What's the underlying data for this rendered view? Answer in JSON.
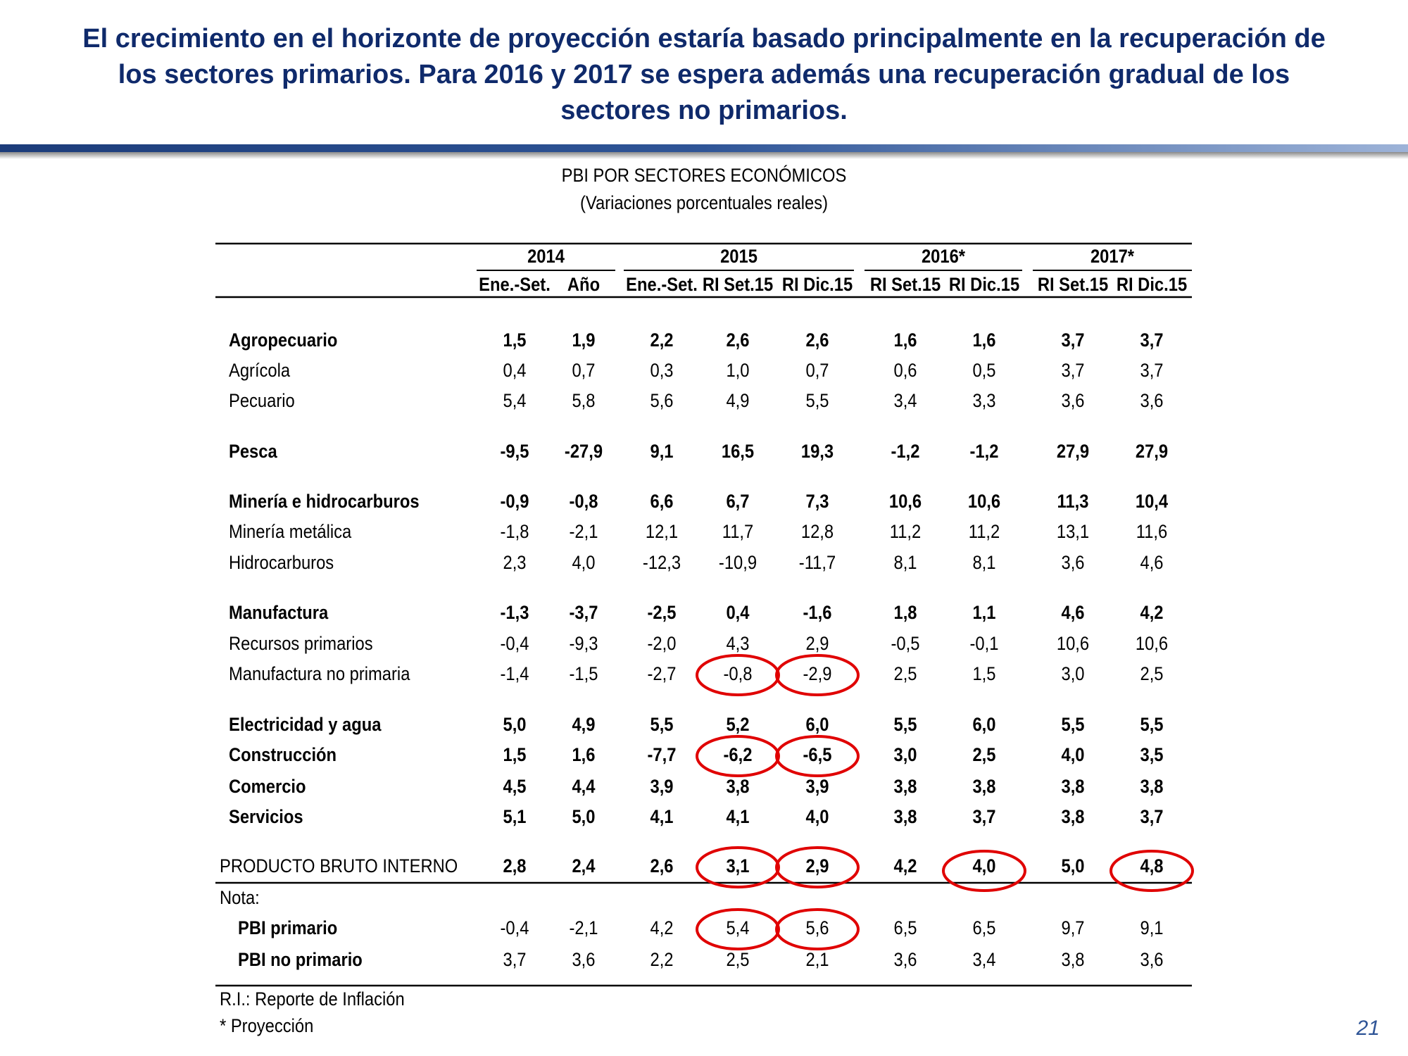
{
  "header": {
    "title": [
      "El crecimiento en el horizonte de proyección estaría basado principalmente en la recuperación de",
      "los sectores primarios. Para 2016 y 2017 se espera además una recuperación gradual de los",
      "sectores no primarios."
    ]
  },
  "table": {
    "title": "PBI POR SECTORES ECONÓMICOS",
    "subtitle": "(Variaciones porcentuales reales)",
    "years": [
      "2014",
      "2015",
      "2016*",
      "2017*"
    ],
    "columns": [
      "Ene.-Set.",
      "Año",
      "Ene.-Set.",
      "RI Set.15",
      "RI Dic.15",
      "RI Set.15",
      "RI Dic.15",
      "RI Set.15",
      "RI Dic.15"
    ],
    "rows": [
      {
        "label": "Agropecuario",
        "values": [
          "1,5",
          "1,9",
          "2,2",
          "2,6",
          "2,6",
          "1,6",
          "1,6",
          "3,7",
          "3,7"
        ]
      },
      {
        "label": "Agrícola",
        "values": [
          "0,4",
          "0,7",
          "0,3",
          "1,0",
          "0,7",
          "0,6",
          "0,5",
          "3,7",
          "3,7"
        ]
      },
      {
        "label": "Pecuario",
        "values": [
          "5,4",
          "5,8",
          "5,6",
          "4,9",
          "5,5",
          "3,4",
          "3,3",
          "3,6",
          "3,6"
        ]
      },
      {
        "label": "Pesca",
        "values": [
          "-9,5",
          "-27,9",
          "9,1",
          "16,5",
          "19,3",
          "-1,2",
          "-1,2",
          "27,9",
          "27,9"
        ]
      },
      {
        "label": "Minería e hidrocarburos",
        "values": [
          "-0,9",
          "-0,8",
          "6,6",
          "6,7",
          "7,3",
          "10,6",
          "10,6",
          "11,3",
          "10,4"
        ]
      },
      {
        "label": "Minería metálica",
        "values": [
          "-1,8",
          "-2,1",
          "12,1",
          "11,7",
          "12,8",
          "11,2",
          "11,2",
          "13,1",
          "11,6"
        ]
      },
      {
        "label": "Hidrocarburos",
        "values": [
          "2,3",
          "4,0",
          "-12,3",
          "-10,9",
          "-11,7",
          "8,1",
          "8,1",
          "3,6",
          "4,6"
        ]
      },
      {
        "label": "Manufactura",
        "values": [
          "-1,3",
          "-3,7",
          "-2,5",
          "0,4",
          "-1,6",
          "1,8",
          "1,1",
          "4,6",
          "4,2"
        ]
      },
      {
        "label": "Recursos primarios",
        "values": [
          "-0,4",
          "-9,3",
          "-2,0",
          "4,3",
          "2,9",
          "-0,5",
          "-0,1",
          "10,6",
          "10,6"
        ]
      },
      {
        "label": "Manufactura no primaria",
        "values": [
          "-1,4",
          "-1,5",
          "-2,7",
          "-0,8",
          "-2,9",
          "2,5",
          "1,5",
          "3,0",
          "2,5"
        ]
      },
      {
        "label": "Electricidad y agua",
        "values": [
          "5,0",
          "4,9",
          "5,5",
          "5,2",
          "6,0",
          "5,5",
          "6,0",
          "5,5",
          "5,5"
        ]
      },
      {
        "label": "Construcción",
        "values": [
          "1,5",
          "1,6",
          "-7,7",
          "-6,2",
          "-6,5",
          "3,0",
          "2,5",
          "4,0",
          "3,5"
        ]
      },
      {
        "label": "Comercio",
        "values": [
          "4,5",
          "4,4",
          "3,9",
          "3,8",
          "3,9",
          "3,8",
          "3,8",
          "3,8",
          "3,8"
        ]
      },
      {
        "label": "Servicios",
        "values": [
          "5,1",
          "5,0",
          "4,1",
          "4,1",
          "4,0",
          "3,8",
          "3,7",
          "3,8",
          "3,7"
        ]
      },
      {
        "label": "PRODUCTO BRUTO INTERNO",
        "values": [
          "2,8",
          "2,4",
          "2,6",
          "3,1",
          "2,9",
          "4,2",
          "4,0",
          "5,0",
          "4,8"
        ]
      },
      {
        "label": "Nota:"
      },
      {
        "label": "PBI primario",
        "values": [
          "-0,4",
          "-2,1",
          "4,2",
          "5,4",
          "5,6",
          "6,5",
          "6,5",
          "9,7",
          "9,1"
        ]
      },
      {
        "label": "PBI no primario",
        "values": [
          "3,7",
          "3,6",
          "2,2",
          "2,5",
          "2,1",
          "3,6",
          "3,4",
          "3,8",
          "3,6"
        ]
      }
    ],
    "notes": [
      "R.I.: Reporte de Inflación",
      "* Proyección"
    ]
  },
  "page_number": "21"
}
